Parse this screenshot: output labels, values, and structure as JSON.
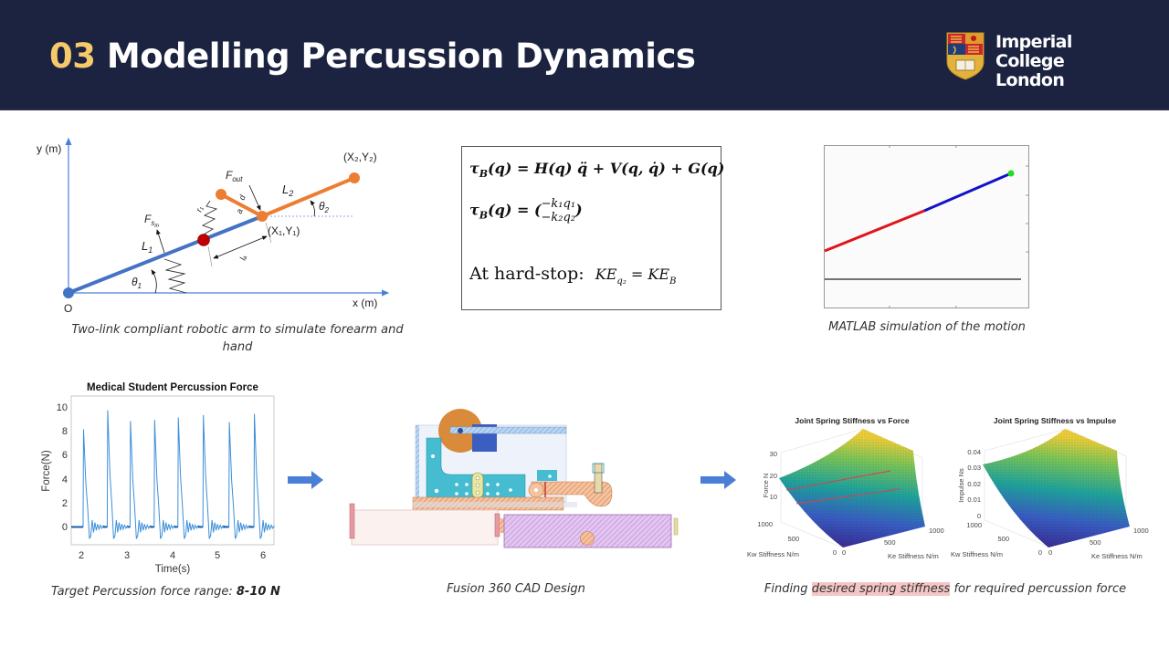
{
  "header": {
    "section_number": "03",
    "title": "Modelling Percussion Dynamics",
    "logo_line1": "Imperial College",
    "logo_line2": "London",
    "bg_color": "#1b2341",
    "accent_color": "#f6c96a"
  },
  "arm_diagram": {
    "y_axis_label": "y (m)",
    "x_axis_label": "x (m)",
    "origin_label": "O",
    "labels": {
      "L1": "L",
      "L1_sub": "1",
      "L2": "L",
      "L2_sub": "2",
      "theta1": "θ",
      "theta1_sub": "1",
      "theta2": "θ",
      "theta2_sub": "2",
      "F_sin": "F",
      "F_sin_sub": "s",
      "F_sin_subsub": "in",
      "F_out": "F",
      "F_out_sub": "out",
      "joint1": "(X₁,Y₁)",
      "joint2": "(X₂,Y₂)",
      "r1": "r₁",
      "a": "a",
      "d": "d",
      "la": "lₐ"
    },
    "caption": "Two-link compliant robotic arm to simulate forearm and hand"
  },
  "equations": {
    "eq1": "τ_B(q) = H(q) q̈ + V(q, q̇) + G(q)",
    "eq1_lhs": "τ",
    "eq1_lhs_sub": "B",
    "eq1_rhs": "(q) = H(q) q̈ + V(q, q̇) + G(q)",
    "eq2_lhs": "τ",
    "eq2_lhs_sub": "B",
    "eq2_mid": "(q) = (",
    "eq2_row1": "−k₁q₁",
    "eq2_row2": "−k₂q₂",
    "eq2_close": ")",
    "eq3_prefix": "At hard-stop:",
    "eq3_lhs": "KE",
    "eq3_lhs_sub": "q₂",
    "eq3_eq": " = ",
    "eq3_rhs": "KE",
    "eq3_rhs_sub": "B"
  },
  "simulation": {
    "caption": "MATLAB simulation of the motion",
    "link1_color": "#e0141b",
    "link2_color": "#1212c8",
    "endpoint_color": "#22dd22"
  },
  "force_plot": {
    "caption_prefix": "Target Percussion force range: ",
    "caption_bold": "8-10 N"
  },
  "cad": {
    "caption": "Fusion 360 CAD Design"
  },
  "surface_plots": {
    "caption_prefix": "Finding ",
    "caption_highlight": "desired spring stiffness",
    "caption_suffix": " for required percussion force"
  },
  "arrows": {
    "color": "#4a7fd6"
  },
  "chart_data": [
    {
      "type": "line",
      "title": "Medical Student Percussion Force",
      "xlabel": "Time(s)",
      "ylabel": "Force(N)",
      "xlim": [
        1.8,
        6.25
      ],
      "ylim": [
        -1.5,
        11
      ],
      "xticks": [
        2,
        3,
        4,
        5,
        6
      ],
      "yticks": [
        0,
        2,
        4,
        6,
        8,
        10
      ],
      "grid": false,
      "series": [
        {
          "name": "Force",
          "peaks": [
            {
              "t": 2.07,
              "force": 8.2
            },
            {
              "t": 2.6,
              "force": 9.8
            },
            {
              "t": 3.1,
              "force": 8.9
            },
            {
              "t": 3.63,
              "force": 9.0
            },
            {
              "t": 4.15,
              "force": 9.2
            },
            {
              "t": 4.7,
              "force": 9.4
            },
            {
              "t": 5.27,
              "force": 8.8
            },
            {
              "t": 5.82,
              "force": 9.5
            }
          ],
          "baseline": 0,
          "min_undershoot": -1.2
        }
      ]
    },
    {
      "type": "surface",
      "title": "Joint Spring Stiffness vs Force",
      "xlabel": "Ke Stiffness N/m",
      "ylabel": "Kw Stiffness N/m",
      "zlabel": "Force N",
      "xticks": [
        0,
        500,
        1000
      ],
      "yticks": [
        0,
        500,
        1000
      ],
      "zticks": [
        10,
        20,
        30
      ],
      "zlim": [
        0,
        35
      ],
      "annotations": [
        "red contour lines at ~8 N and ~10 N"
      ]
    },
    {
      "type": "surface",
      "title": "Joint Spring Stiffness vs Impulse",
      "xlabel": "Ke Stiffness N/m",
      "ylabel": "Kw Stiffness N/m",
      "zlabel": "Impulse Ns",
      "xticks": [
        0,
        500,
        1000
      ],
      "yticks": [
        0,
        500,
        1000
      ],
      "zticks": [
        0,
        0.01,
        0.02,
        0.03,
        0.04
      ],
      "zlim": [
        0,
        0.045
      ]
    }
  ]
}
